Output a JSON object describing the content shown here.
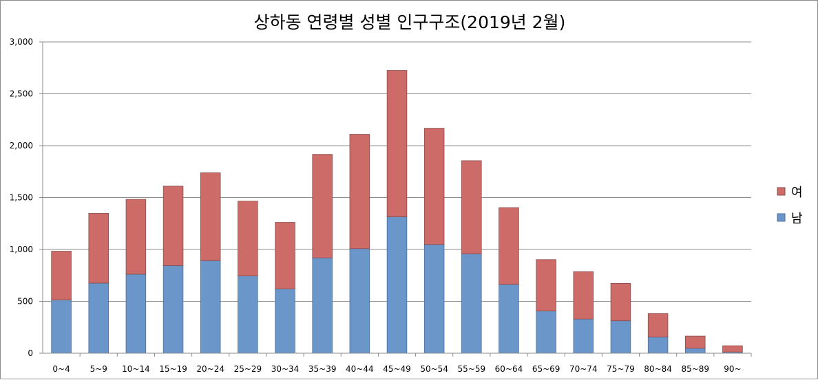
{
  "chart_data": {
    "type": "bar",
    "stacked": true,
    "title": "상하동 연령별 성별 인구구조(2019년 2월)",
    "xlabel": "",
    "ylabel": "",
    "categories": [
      "0~4",
      "5~9",
      "10~14",
      "15~19",
      "20~24",
      "25~29",
      "30~34",
      "35~39",
      "40~44",
      "45~49",
      "50~54",
      "55~59",
      "60~64",
      "65~69",
      "70~74",
      "75~79",
      "80~84",
      "85~89",
      "90~"
    ],
    "series": [
      {
        "name": "남",
        "color": "#6a96c9",
        "values": [
          513,
          676,
          762,
          845,
          892,
          745,
          620,
          919,
          1008,
          1315,
          1048,
          958,
          663,
          407,
          330,
          313,
          157,
          48,
          12
        ]
      },
      {
        "name": "여",
        "color": "#cd6b69",
        "values": [
          470,
          672,
          721,
          765,
          847,
          720,
          641,
          997,
          1101,
          1410,
          1120,
          897,
          740,
          495,
          455,
          360,
          225,
          117,
          60
        ]
      }
    ],
    "ylim": [
      0,
      3000
    ],
    "yticks": [
      "0",
      "500",
      "1,000",
      "1,500",
      "2,000",
      "2,500",
      "3,000"
    ],
    "ytick_values": [
      0,
      500,
      1000,
      1500,
      2000,
      2500,
      3000
    ],
    "grid": true,
    "legend_position": "right",
    "legend": [
      {
        "label": "여",
        "color": "#cd6b69"
      },
      {
        "label": "남",
        "color": "#6a96c9"
      }
    ]
  }
}
